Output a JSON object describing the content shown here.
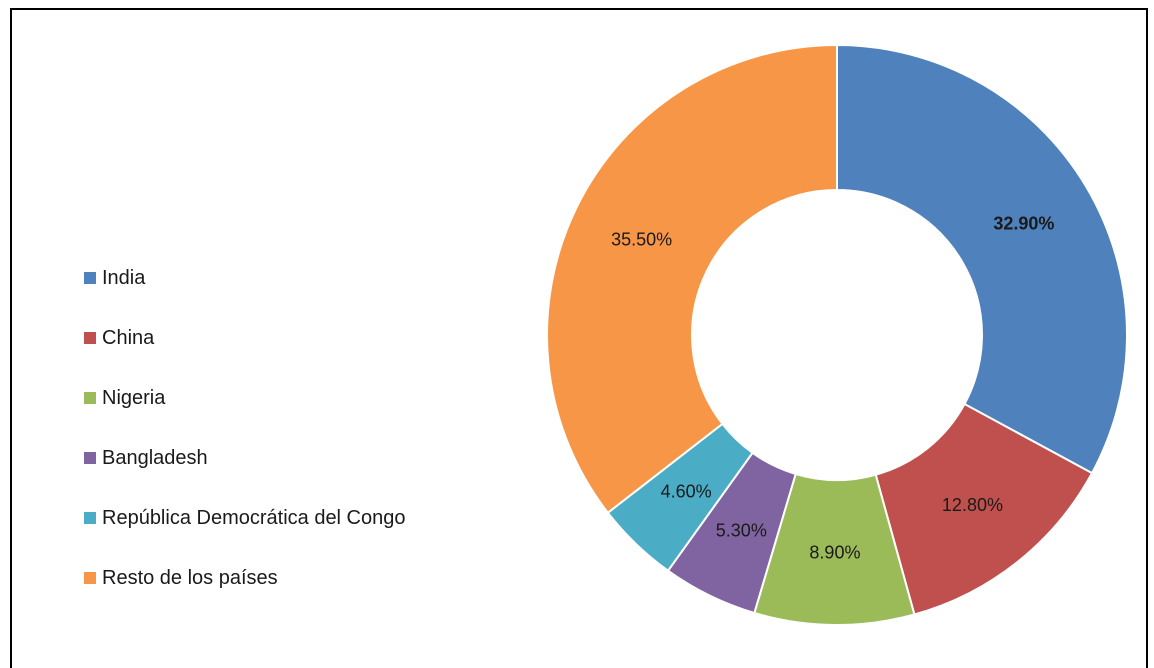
{
  "chart_data": {
    "type": "pie",
    "style": "donut",
    "categories": [
      "India",
      "China",
      "Nigeria",
      "Bangladesh",
      "República Democrática del Congo",
      "Resto de los países"
    ],
    "values": [
      32.9,
      12.8,
      8.9,
      5.3,
      4.6,
      35.5
    ],
    "labels": [
      "32.90%",
      "12.80%",
      "8.90%",
      "5.30%",
      "4.60%",
      "35.50%"
    ],
    "colors": [
      "#4F81BD",
      "#C0504D",
      "#9BBB59",
      "#8064A2",
      "#4BACC6",
      "#F79646"
    ],
    "legend_position": "left"
  }
}
